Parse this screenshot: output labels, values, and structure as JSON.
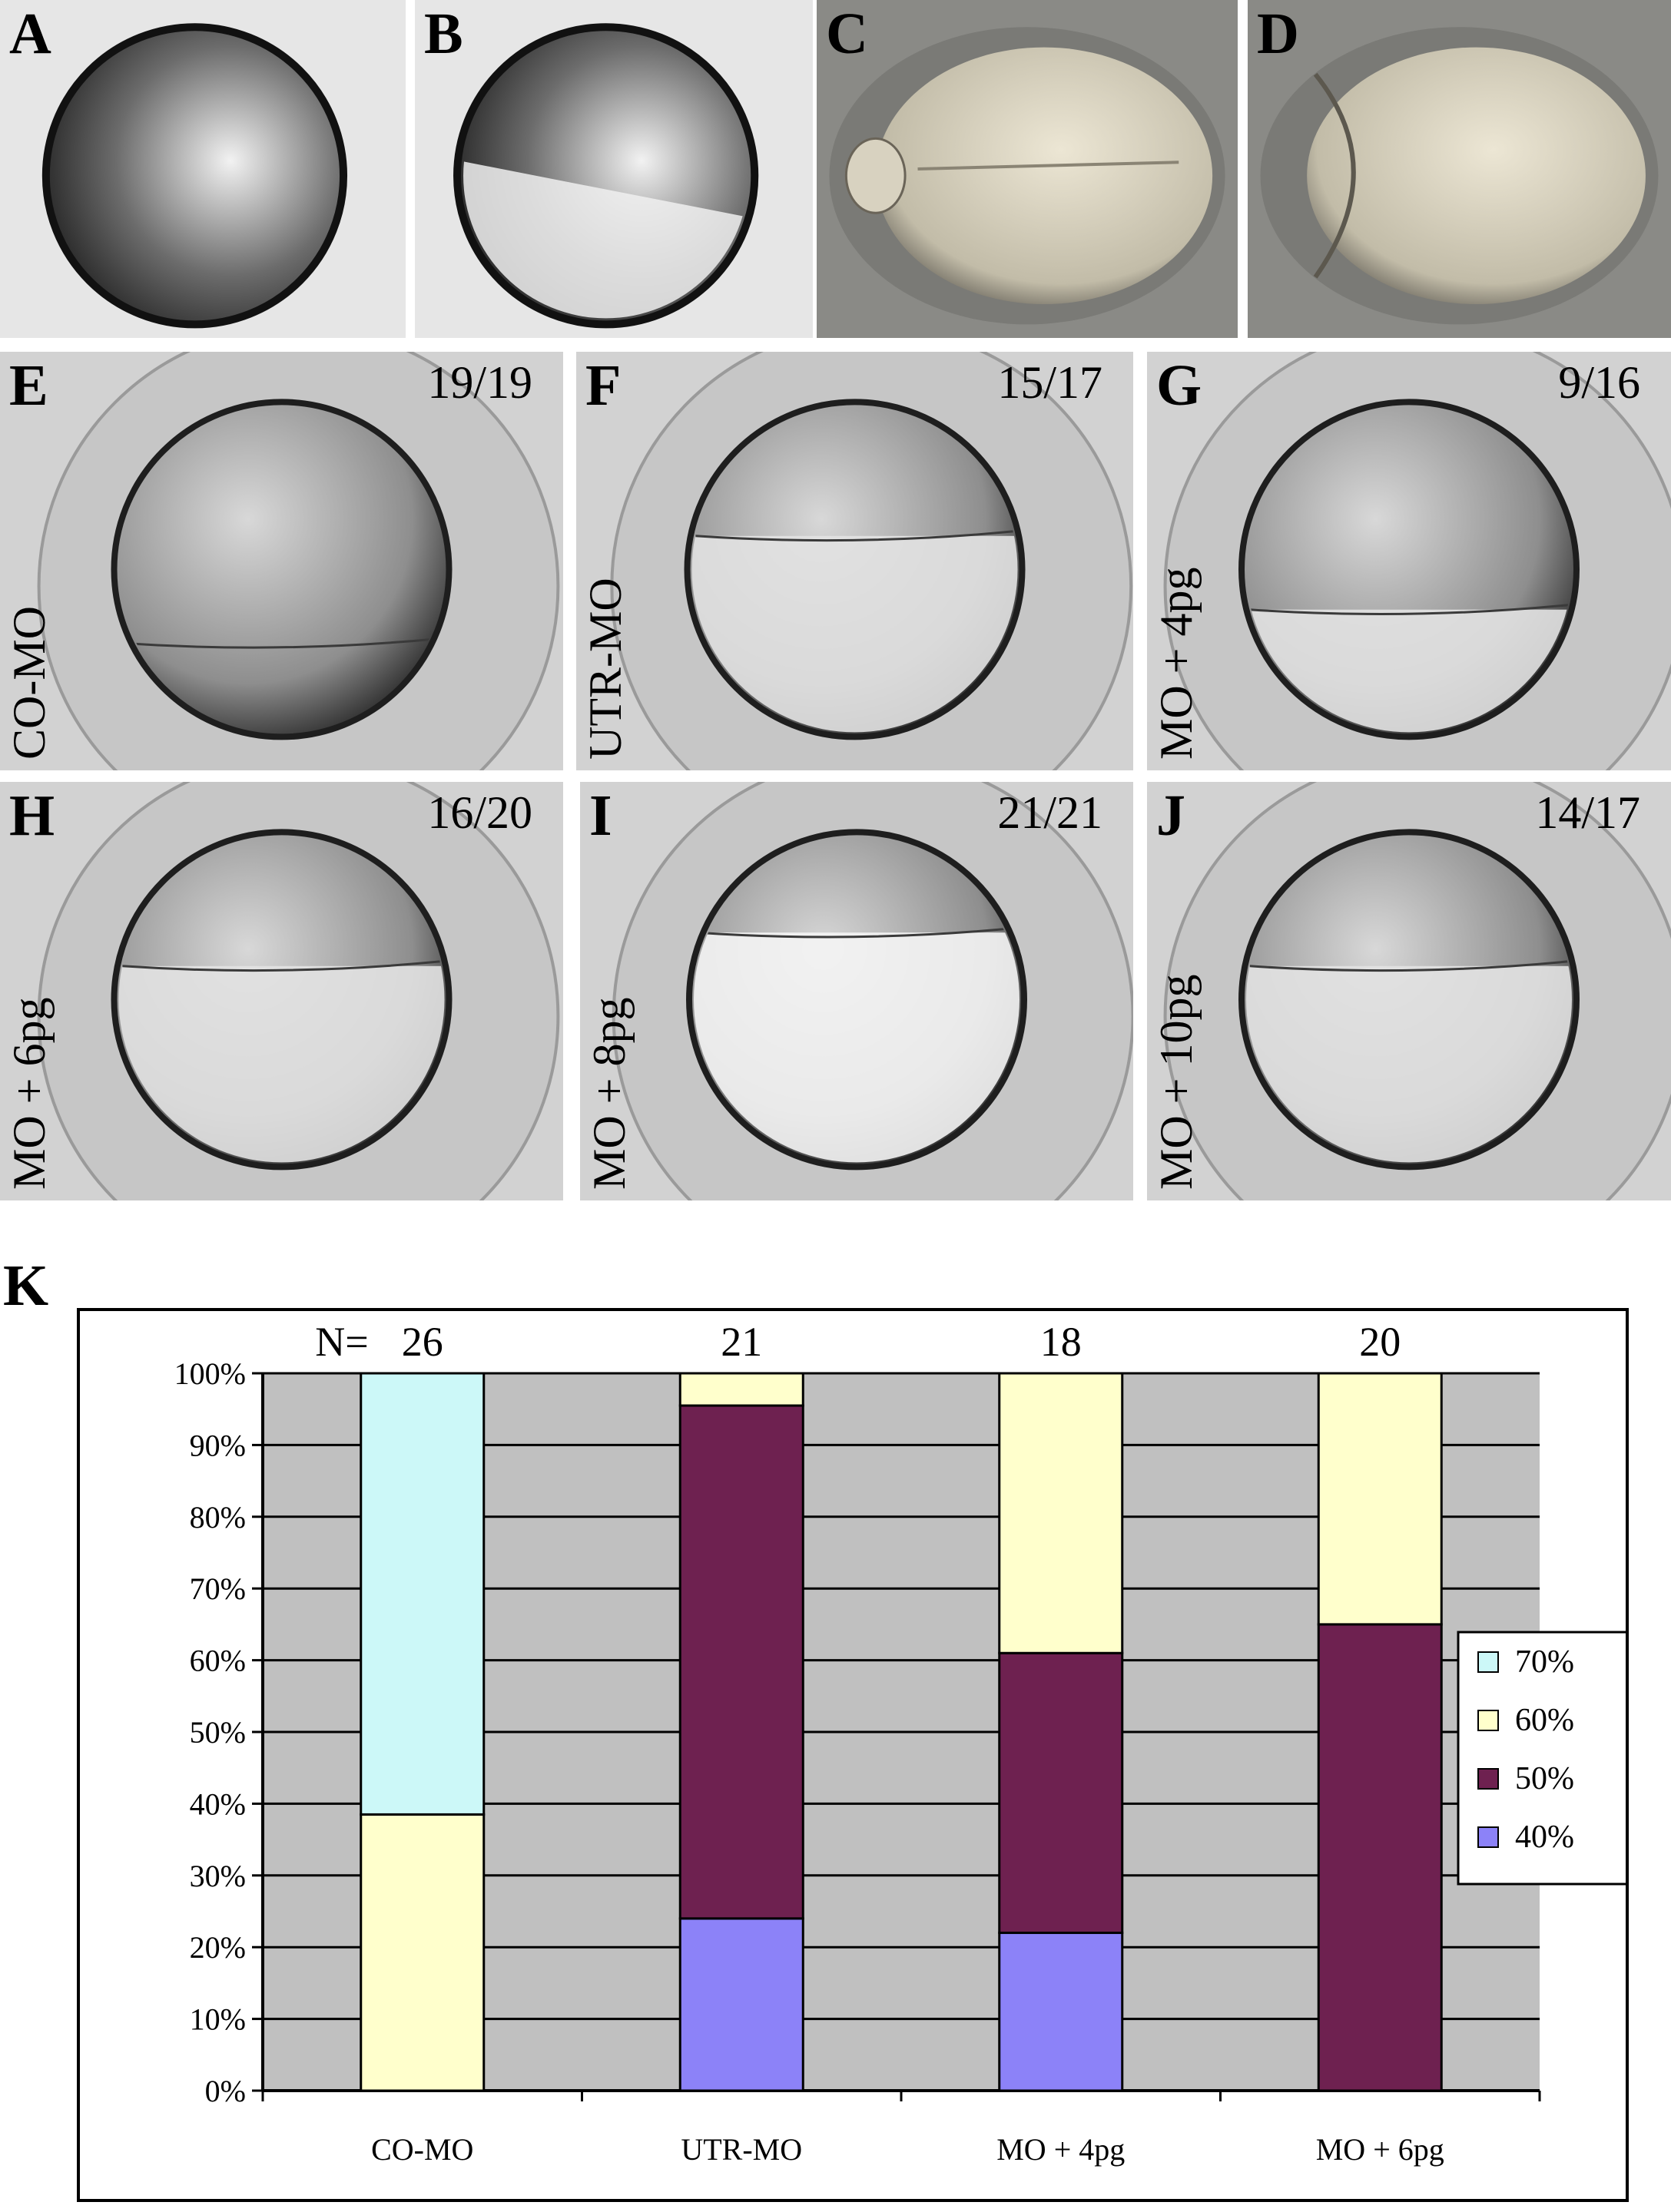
{
  "panels": [
    {
      "letter": "A",
      "count": "",
      "label": "",
      "style": "dark"
    },
    {
      "letter": "B",
      "count": "",
      "label": "",
      "style": "dark-half"
    },
    {
      "letter": "C",
      "count": "",
      "label": "",
      "style": "cream-elong"
    },
    {
      "letter": "D",
      "count": "",
      "label": "",
      "style": "cream-notch"
    },
    {
      "letter": "E",
      "count": "19/19",
      "label": "CO-MO",
      "style": "dic-full"
    },
    {
      "letter": "F",
      "count": "15/17",
      "label": "UTR-MO",
      "style": "dic-half"
    },
    {
      "letter": "G",
      "count": "9/16",
      "label": "MO + 4pg",
      "style": "dic-low"
    },
    {
      "letter": "H",
      "count": "16/20",
      "label": "MO + 6pg",
      "style": "dic-half"
    },
    {
      "letter": "I",
      "count": "21/21",
      "label": "MO + 8pg",
      "style": "dic-open"
    },
    {
      "letter": "J",
      "count": "14/17",
      "label": "MO + 10pg",
      "style": "dic-half"
    }
  ],
  "chart_label": "K",
  "chart_data": {
    "type": "bar",
    "stacked": true,
    "categories": [
      "CO-MO",
      "UTR-MO",
      "MO + 4pg",
      "MO + 6pg"
    ],
    "n_prefix": "N=",
    "n_values": [
      "26",
      "21",
      "18",
      "20"
    ],
    "ylim": [
      0,
      100
    ],
    "yticks": [
      "0%",
      "10%",
      "20%",
      "30%",
      "40%",
      "50%",
      "60%",
      "70%",
      "80%",
      "90%",
      "100%"
    ],
    "grid": true,
    "legend_position": "right",
    "series": [
      {
        "name": "40%",
        "color": "#8c82f8",
        "values": [
          0,
          24,
          22,
          0
        ]
      },
      {
        "name": "50%",
        "color": "#6e2150",
        "values": [
          0,
          71.5,
          39,
          65
        ]
      },
      {
        "name": "60%",
        "color": "#ffffcc",
        "values": [
          38.5,
          4.5,
          39,
          35
        ]
      },
      {
        "name": "70%",
        "color": "#ccf8f8",
        "values": [
          61.5,
          0,
          0,
          0
        ]
      }
    ],
    "plot_background": "#c0c0c0"
  }
}
